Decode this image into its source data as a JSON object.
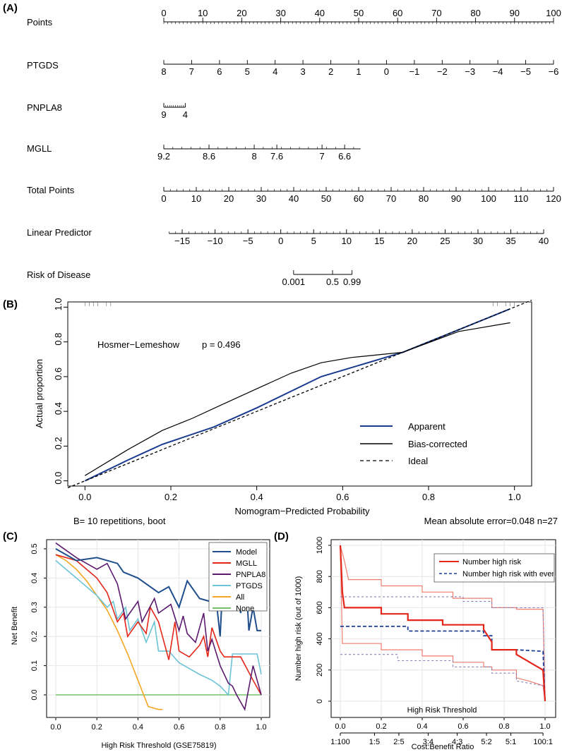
{
  "panels": {
    "a": "(A)",
    "b": "(B)",
    "c": "(C)",
    "d": "(D)"
  },
  "colors": {
    "apparent": "#1a3a8f",
    "model": "#1f4e8c",
    "mglL": "#e32619",
    "pnpla8": "#5b1a6e",
    "ptgds": "#6cc4d6",
    "all": "#f5a623",
    "none": "#77c06a",
    "risk": "#e32619",
    "riskBand": "#f07d6e",
    "events": "#1f3f9a",
    "eventsBand": "#8a7fb8"
  },
  "chart_data": [
    {
      "type": "nomogram",
      "rows": [
        {
          "name": "Points",
          "ticks": [
            {
              "v": 0,
              "label": "0"
            },
            {
              "v": 10,
              "label": "10"
            },
            {
              "v": 20,
              "label": "20"
            },
            {
              "v": 30,
              "label": "30"
            },
            {
              "v": 40,
              "label": "40"
            },
            {
              "v": 50,
              "label": "50"
            },
            {
              "v": 60,
              "label": "60"
            },
            {
              "v": 70,
              "label": "70"
            },
            {
              "v": 80,
              "label": "80"
            },
            {
              "v": 90,
              "label": "90"
            },
            {
              "v": 100,
              "label": "100"
            }
          ],
          "minor_step": 1,
          "range": [
            0,
            100
          ]
        },
        {
          "name": "PTGDS",
          "ticks": [
            {
              "v": 0,
              "label": "8"
            },
            {
              "v": 7.14,
              "label": "7"
            },
            {
              "v": 14.29,
              "label": "6"
            },
            {
              "v": 21.43,
              "label": "5"
            },
            {
              "v": 28.57,
              "label": "4"
            },
            {
              "v": 35.71,
              "label": "3"
            },
            {
              "v": 42.86,
              "label": "2"
            },
            {
              "v": 50,
              "label": "1"
            },
            {
              "v": 57.14,
              "label": "0"
            },
            {
              "v": 64.29,
              "label": "−1"
            },
            {
              "v": 71.43,
              "label": "−2"
            },
            {
              "v": 78.57,
              "label": "−3"
            },
            {
              "v": 85.71,
              "label": "−4"
            },
            {
              "v": 92.86,
              "label": "−5"
            },
            {
              "v": 100,
              "label": "−6"
            }
          ],
          "range": [
            0,
            100
          ]
        },
        {
          "name": "PNPLA8",
          "ticks": [
            {
              "v": 0,
              "label": "9"
            },
            {
              "v": 5.5,
              "label": "4"
            }
          ],
          "minor_step": 0.5,
          "range": [
            0,
            5.5
          ]
        },
        {
          "name": "MGLL",
          "ticks": [
            {
              "v": 0,
              "label": "9.2"
            },
            {
              "v": 11.6,
              "label": "8.6"
            },
            {
              "v": 23.2,
              "label": "8"
            },
            {
              "v": 29,
              "label": "7.6"
            },
            {
              "v": 40.6,
              "label": "7"
            },
            {
              "v": 46.4,
              "label": "6.6"
            }
          ],
          "minor_step": 2.32,
          "range": [
            0,
            50.5
          ]
        },
        {
          "name": "Total Points",
          "ticks": [
            {
              "v": 0,
              "label": "0"
            },
            {
              "v": 10,
              "label": "10"
            },
            {
              "v": 20,
              "label": "20"
            },
            {
              "v": 30,
              "label": "30"
            },
            {
              "v": 40,
              "label": "40"
            },
            {
              "v": 50,
              "label": "50"
            },
            {
              "v": 60,
              "label": "60"
            },
            {
              "v": 70,
              "label": "70"
            },
            {
              "v": 80,
              "label": "80"
            },
            {
              "v": 90,
              "label": "90"
            },
            {
              "v": 100,
              "label": "100"
            },
            {
              "v": 110,
              "label": "110"
            },
            {
              "v": 120,
              "label": "120"
            }
          ],
          "minor_step": 2,
          "scale": 120,
          "range": [
            0,
            120
          ]
        },
        {
          "name": "Linear Predictor",
          "ticks": [
            {
              "v": -15,
              "label": "−15"
            },
            {
              "v": -10,
              "label": "−10"
            },
            {
              "v": -5,
              "label": "−5"
            },
            {
              "v": 0,
              "label": "0"
            },
            {
              "v": 5,
              "label": "5"
            },
            {
              "v": 10,
              "label": "10"
            },
            {
              "v": 15,
              "label": "15"
            },
            {
              "v": 20,
              "label": "20"
            },
            {
              "v": 25,
              "label": "25"
            },
            {
              "v": 30,
              "label": "30"
            },
            {
              "v": 35,
              "label": "35"
            },
            {
              "v": 40,
              "label": "40"
            }
          ],
          "minor_step": 1,
          "domain": [
            -17.8,
            41.5
          ],
          "range": [
            -17,
            40
          ]
        },
        {
          "name": "Risk of Disease",
          "ticks": [
            {
              "v": 0.001,
              "label": "0.001",
              "pos": 33.3
            },
            {
              "v": 0.5,
              "label": "0.5",
              "pos": 43.3
            },
            {
              "v": 0.99,
              "label": "0.99",
              "pos": 48.3
            }
          ],
          "range_pos": [
            33.3,
            48.3
          ]
        }
      ]
    },
    {
      "type": "line",
      "title": "",
      "xlabel": "Nomogram−Predicted Probability",
      "ylabel": "Actual proportion",
      "xlim": [
        -0.04,
        1.04
      ],
      "ylim": [
        -0.03,
        1.03
      ],
      "xticks": [
        0.0,
        0.2,
        0.4,
        0.6,
        0.8,
        1.0
      ],
      "xtick_labels": [
        "0.0",
        "0.2",
        "0.4",
        "0.6",
        "0.8",
        "1.0"
      ],
      "yticks": [
        0.0,
        0.2,
        0.4,
        0.6,
        0.8,
        1.0
      ],
      "ytick_labels": [
        "0.0",
        "0.2",
        "0.4",
        "0.6",
        "0.8",
        "1.0"
      ],
      "annotation": {
        "test": "Hosmer−Lemeshow",
        "p": "p = 0.496"
      },
      "footer_left": "B= 10 repetitions, boot",
      "footer_right": "Mean absolute error=0.048 n=27",
      "series": [
        {
          "name": "Apparent",
          "x": [
            0.0,
            0.1,
            0.18,
            0.3,
            0.4,
            0.55,
            0.74,
            0.87,
            0.99
          ],
          "y": [
            0.0,
            0.12,
            0.21,
            0.31,
            0.42,
            0.6,
            0.74,
            0.87,
            0.99
          ]
        },
        {
          "name": "Bias-corrected",
          "x": [
            0.0,
            0.1,
            0.18,
            0.25,
            0.32,
            0.4,
            0.48,
            0.55,
            0.62,
            0.7,
            0.74,
            0.87,
            0.99
          ],
          "y": [
            0.03,
            0.18,
            0.29,
            0.36,
            0.44,
            0.53,
            0.62,
            0.68,
            0.71,
            0.73,
            0.74,
            0.86,
            0.91
          ]
        },
        {
          "name": "Ideal",
          "x": [
            -0.04,
            1.04
          ],
          "y": [
            -0.04,
            1.04
          ]
        }
      ],
      "rug_top": [
        0.0,
        0.01,
        0.02,
        0.03,
        0.05,
        0.06,
        0.95,
        0.96,
        0.98,
        0.99,
        1.0
      ]
    },
    {
      "type": "line",
      "xlabel": "High Risk Threshold (GSE75819)",
      "ylabel": "Net Benefit",
      "xlim": [
        0,
        1
      ],
      "ylim": [
        -0.05,
        0.55
      ],
      "xticks": [
        0,
        0.2,
        0.4,
        0.6,
        0.8,
        1.0
      ],
      "xtick_labels": [
        "0.0",
        "0.2",
        "0.4",
        "0.6",
        "0.8",
        "1.0"
      ],
      "yticks": [
        0.0,
        0.1,
        0.2,
        0.3,
        0.4,
        0.5
      ],
      "ytick_labels": [
        "0.0",
        "0.1",
        "0.2",
        "0.3",
        "0.4",
        "0.5"
      ],
      "series": [
        {
          "name": "Model",
          "x": [
            0.0,
            0.05,
            0.1,
            0.2,
            0.25,
            0.3,
            0.33,
            0.4,
            0.5,
            0.55,
            0.6,
            0.64,
            0.7,
            0.75,
            0.78,
            0.8,
            0.82,
            0.84,
            0.86,
            0.9,
            0.92,
            0.94,
            0.96,
            0.98,
            1.0
          ],
          "y": [
            0.5,
            0.48,
            0.46,
            0.47,
            0.46,
            0.45,
            0.42,
            0.4,
            0.35,
            0.37,
            0.3,
            0.39,
            0.33,
            0.32,
            0.33,
            0.2,
            0.48,
            0.45,
            0.46,
            0.28,
            0.47,
            0.22,
            0.3,
            0.22,
            0.22
          ]
        },
        {
          "name": "MGLL",
          "x": [
            0.0,
            0.1,
            0.2,
            0.25,
            0.3,
            0.33,
            0.35,
            0.4,
            0.44,
            0.46,
            0.5,
            0.55,
            0.58,
            0.6,
            0.65,
            0.7,
            0.72,
            0.74,
            0.76,
            0.8,
            0.82,
            0.86,
            0.9,
            0.96,
            1.0
          ],
          "y": [
            0.48,
            0.46,
            0.4,
            0.35,
            0.25,
            0.28,
            0.2,
            0.25,
            0.21,
            0.3,
            0.25,
            0.12,
            0.25,
            0.15,
            0.13,
            0.17,
            0.2,
            0.13,
            0.23,
            0.15,
            0.13,
            0.13,
            0.13,
            0.05,
            0.0
          ]
        },
        {
          "name": "PNPLA8",
          "x": [
            0.0,
            0.1,
            0.2,
            0.25,
            0.3,
            0.34,
            0.4,
            0.42,
            0.48,
            0.5,
            0.56,
            0.6,
            0.62,
            0.64,
            0.68,
            0.72,
            0.74,
            0.76,
            0.8,
            0.84,
            0.86,
            0.88,
            0.92,
            0.96,
            1.0
          ],
          "y": [
            0.52,
            0.47,
            0.43,
            0.45,
            0.38,
            0.26,
            0.32,
            0.25,
            0.33,
            0.28,
            0.31,
            0.22,
            0.27,
            0.21,
            0.18,
            0.28,
            0.15,
            0.19,
            0.1,
            0.04,
            0.03,
            0.0,
            -0.05,
            0.1,
            0.0
          ]
        },
        {
          "name": "PTGDS",
          "x": [
            0.0,
            0.05,
            0.1,
            0.15,
            0.2,
            0.25,
            0.28,
            0.3,
            0.34,
            0.36,
            0.4,
            0.44,
            0.48,
            0.5,
            0.55,
            0.6,
            0.65,
            0.7,
            0.76,
            0.8,
            0.84,
            0.86,
            0.9,
            0.94,
            0.98,
            1.0
          ],
          "y": [
            0.46,
            0.43,
            0.4,
            0.37,
            0.34,
            0.3,
            0.32,
            0.26,
            0.3,
            0.22,
            0.26,
            0.18,
            0.25,
            0.15,
            0.15,
            0.11,
            0.09,
            0.07,
            0.05,
            0.03,
            0.0,
            0.14,
            0.14,
            0.14,
            0.14,
            0.07
          ]
        },
        {
          "name": "All",
          "x": [
            0.0,
            0.05,
            0.1,
            0.15,
            0.2,
            0.25,
            0.3,
            0.35,
            0.4,
            0.45,
            0.5,
            0.52
          ],
          "y": [
            0.48,
            0.46,
            0.43,
            0.39,
            0.34,
            0.29,
            0.22,
            0.14,
            0.05,
            -0.04,
            -0.05,
            -0.05
          ]
        },
        {
          "name": "None",
          "x": [
            0.0,
            1.0
          ],
          "y": [
            0.0,
            0.0
          ]
        }
      ]
    },
    {
      "type": "line",
      "xlabel": "High Risk Threshold",
      "ylabel": "Number high risk (out of 1000)",
      "xlim": [
        0,
        1
      ],
      "ylim": [
        0,
        1000
      ],
      "xticks": [
        0,
        0.2,
        0.4,
        0.6,
        0.8,
        1.0
      ],
      "xtick_labels": [
        "0.0",
        "0.2",
        "0.4",
        "0.6",
        "0.8",
        "1.0"
      ],
      "yticks": [
        0,
        200,
        400,
        600,
        800,
        1000
      ],
      "ytick_labels": [
        "0",
        "200",
        "400",
        "600",
        "800",
        "1000"
      ],
      "ratio_label": "Cost:Benefit Ratio",
      "ratio_ticks": [
        {
          "x": 0.0,
          "label": "1:100"
        },
        {
          "x": 0.167,
          "label": "1:5"
        },
        {
          "x": 0.286,
          "label": "2:5"
        },
        {
          "x": 0.429,
          "label": "3:4"
        },
        {
          "x": 0.571,
          "label": "4:3"
        },
        {
          "x": 0.714,
          "label": "5:2"
        },
        {
          "x": 0.833,
          "label": "5:1"
        },
        {
          "x": 0.99,
          "label": "100:1"
        }
      ],
      "legend": [
        "Number high risk",
        "Number high risk with event"
      ],
      "series": [
        {
          "name": "Number high risk",
          "x": [
            0.0,
            0.01,
            0.02,
            0.02,
            0.2,
            0.2,
            0.33,
            0.33,
            0.5,
            0.5,
            0.7,
            0.7,
            0.72,
            0.74,
            0.74,
            0.86,
            0.86,
            0.99,
            1.0
          ],
          "y": [
            1000,
            700,
            600,
            600,
            600,
            560,
            560,
            520,
            520,
            490,
            490,
            460,
            420,
            380,
            330,
            330,
            300,
            200,
            0
          ]
        },
        {
          "name": "Number high risk upper",
          "x": [
            0.0,
            0.02,
            0.04,
            0.04,
            0.2,
            0.2,
            0.4,
            0.4,
            0.55,
            0.55,
            0.74,
            0.74,
            0.86,
            0.86,
            0.99,
            1.0
          ],
          "y": [
            1000,
            900,
            780,
            780,
            780,
            740,
            740,
            700,
            700,
            660,
            660,
            600,
            600,
            590,
            590,
            0
          ]
        },
        {
          "name": "Number high risk lower",
          "x": [
            0.0,
            0.01,
            0.01,
            0.2,
            0.2,
            0.4,
            0.4,
            0.55,
            0.55,
            0.7,
            0.7,
            0.74,
            0.74,
            0.86,
            0.86,
            0.92,
            0.99,
            1.0
          ],
          "y": [
            1000,
            380,
            370,
            370,
            330,
            330,
            290,
            290,
            250,
            250,
            220,
            220,
            200,
            200,
            150,
            130,
            100,
            0
          ]
        },
        {
          "name": "Number high risk with event",
          "x": [
            0.0,
            0.33,
            0.33,
            0.7,
            0.7,
            0.74,
            0.74,
            0.86,
            0.86,
            0.99,
            1.0
          ],
          "y": [
            480,
            480,
            450,
            450,
            420,
            420,
            330,
            330,
            330,
            320,
            0
          ]
        },
        {
          "name": "Number high risk with event upper",
          "x": [
            0.0,
            0.6,
            0.6,
            0.74,
            0.74,
            0.99,
            1.0
          ],
          "y": [
            670,
            670,
            640,
            640,
            600,
            600,
            0
          ]
        },
        {
          "name": "Number high risk with event lower",
          "x": [
            0.0,
            0.28,
            0.28,
            0.55,
            0.55,
            0.74,
            0.74,
            0.86,
            0.86,
            0.99,
            1.0
          ],
          "y": [
            300,
            300,
            260,
            260,
            220,
            220,
            180,
            180,
            130,
            100,
            0
          ]
        }
      ]
    }
  ]
}
